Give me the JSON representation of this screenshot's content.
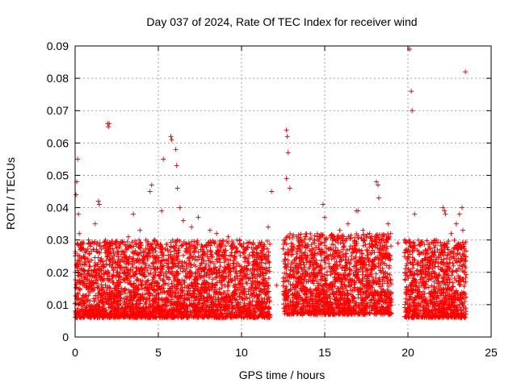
{
  "chart_data": {
    "type": "scatter",
    "title": "Day 037 of 2024, Rate Of TEC Index for receiver wind",
    "xlabel": "GPS time / hours",
    "ylabel": "ROTI / TECUs",
    "xlim": [
      0,
      25
    ],
    "ylim": [
      0,
      0.09
    ],
    "x_ticks": [
      "0",
      "5",
      "10",
      "15",
      "20",
      "25"
    ],
    "y_ticks": [
      "0",
      "0.01",
      "0.02",
      "0.03",
      "0.04",
      "0.05",
      "0.06",
      "0.07",
      "0.08",
      "0.09"
    ],
    "grid": true,
    "legend": "none",
    "marker": "plus",
    "color": "#ff0000",
    "series": [
      {
        "x": [
          0.05,
          0.1,
          0.15,
          0.2,
          0.25,
          0.3,
          0.1,
          0.2,
          0.15,
          0.5,
          0.8,
          1.2,
          1.4,
          1.45,
          1.5,
          1.95,
          2.0,
          2.05,
          2.1,
          2.3,
          2.6,
          3.2,
          3.5,
          3.9,
          4.5,
          4.6,
          4.8,
          5.2,
          5.3,
          5.75,
          5.8,
          6.05,
          6.1,
          6.15,
          6.3,
          6.5,
          7.0,
          7.4,
          8.1,
          8.5,
          8.8,
          9.2,
          9.5,
          9.9,
          10.3,
          10.9,
          11.2,
          11.6,
          11.8,
          12.1,
          12.7,
          12.75,
          12.8,
          12.7,
          12.9,
          13.2,
          13.6,
          14.0,
          14.4,
          14.9,
          15.0,
          15.5,
          15.9,
          16.4,
          16.9,
          17.0,
          17.3,
          17.7,
          18.1,
          18.2,
          18.25,
          18.5,
          18.8,
          19.4,
          19.8,
          20.1,
          20.2,
          20.25,
          20.3,
          20.4,
          20.8,
          21.3,
          21.7,
          22.1,
          22.2,
          22.25,
          22.6,
          22.9,
          23.1,
          23.25,
          23.3,
          23.4,
          23.45
        ],
        "y": [
          0.044,
          0.048,
          0.055,
          0.038,
          0.032,
          0.027,
          0.022,
          0.019,
          0.012,
          0.025,
          0.03,
          0.035,
          0.042,
          0.041,
          0.028,
          0.066,
          0.065,
          0.066,
          0.029,
          0.026,
          0.024,
          0.031,
          0.038,
          0.033,
          0.045,
          0.047,
          0.03,
          0.039,
          0.055,
          0.062,
          0.061,
          0.058,
          0.053,
          0.046,
          0.04,
          0.036,
          0.034,
          0.037,
          0.033,
          0.032,
          0.028,
          0.031,
          0.029,
          0.03,
          0.027,
          0.026,
          0.028,
          0.034,
          0.045,
          0.016,
          0.064,
          0.062,
          0.057,
          0.049,
          0.046,
          0.024,
          0.026,
          0.028,
          0.029,
          0.041,
          0.037,
          0.031,
          0.033,
          0.035,
          0.039,
          0.039,
          0.033,
          0.032,
          0.048,
          0.047,
          0.043,
          0.031,
          0.035,
          0.029,
          0.03,
          0.089,
          0.076,
          0.07,
          0.029,
          0.038,
          0.026,
          0.022,
          0.024,
          0.04,
          0.039,
          0.038,
          0.032,
          0.035,
          0.038,
          0.04,
          0.033,
          0.024,
          0.082
        ]
      }
    ],
    "density": {
      "description_free": true,
      "bands": [
        {
          "x0": 0.0,
          "x1": 11.7,
          "ymin": 0.002,
          "ymax": 0.026
        },
        {
          "x0": 12.5,
          "x1": 19.0,
          "ymin": 0.003,
          "ymax": 0.028
        },
        {
          "x0": 19.8,
          "x1": 23.5,
          "ymin": 0.002,
          "ymax": 0.026
        }
      ]
    }
  }
}
